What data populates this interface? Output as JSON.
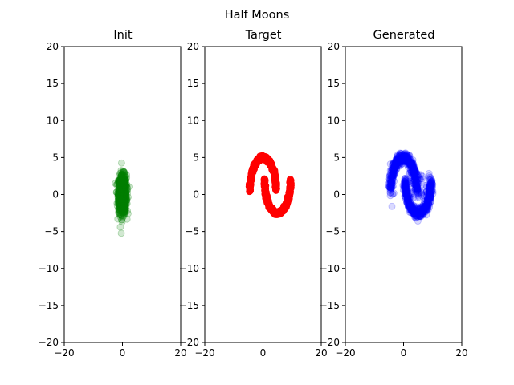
{
  "figure": {
    "suptitle": "Half Moons"
  },
  "chart_data": [
    {
      "type": "scatter",
      "title": "Init",
      "xlim": [
        -20,
        20
      ],
      "ylim": [
        -20,
        20
      ],
      "xticks": [
        -20,
        0,
        20
      ],
      "yticks": [
        -20,
        -15,
        -10,
        -5,
        0,
        5,
        10,
        15,
        20
      ],
      "xtick_labels": [
        "−20",
        "0",
        "20"
      ],
      "ytick_labels": [
        "−20",
        "−15",
        "−10",
        "−5",
        "0",
        "5",
        "10",
        "15",
        "20"
      ],
      "grid": false,
      "series": [
        {
          "color": "#008000",
          "alpha": 0.18,
          "distribution": "gaussian",
          "center": [
            0,
            0
          ],
          "std": [
            0.7,
            1.3
          ],
          "x_range": [
            -1.8,
            1.8
          ],
          "y_range": [
            -4,
            4
          ]
        }
      ]
    },
    {
      "type": "scatter",
      "title": "Target",
      "xlim": [
        -20,
        20
      ],
      "ylim": [
        -20,
        20
      ],
      "xticks": [
        -20,
        0,
        20
      ],
      "yticks": [
        -20,
        -15,
        -10,
        -5,
        0,
        5,
        10,
        15,
        20
      ],
      "xtick_labels": [
        "−20",
        "0",
        "20"
      ],
      "ytick_labels": [
        "−20",
        "−15",
        "−10",
        "−5",
        "0",
        "5",
        "10",
        "15",
        "20"
      ],
      "grid": false,
      "series": [
        {
          "color": "#ff0000",
          "alpha": 0.9,
          "distribution": "two half moons",
          "moons": [
            {
              "center": [
                0,
                0.5
              ],
              "radius": 4.5,
              "arc": "upper"
            },
            {
              "center": [
                5,
                2.0
              ],
              "radius": 4.5,
              "arc": "lower"
            }
          ],
          "x_range": [
            -5,
            10
          ],
          "y_range": [
            -2.5,
            5.3
          ]
        }
      ]
    },
    {
      "type": "scatter",
      "title": "Generated",
      "xlim": [
        -20,
        20
      ],
      "ylim": [
        -20,
        20
      ],
      "xticks": [
        -20,
        0,
        20
      ],
      "yticks": [
        -20,
        -15,
        -10,
        -5,
        0,
        5,
        10,
        15,
        20
      ],
      "xtick_labels": [
        "−20",
        "0",
        "20"
      ],
      "ytick_labels": [
        "−20",
        "−15",
        "−10",
        "−5",
        "0",
        "5",
        "10",
        "15",
        "20"
      ],
      "grid": false,
      "series": [
        {
          "color": "#0000ff",
          "alpha": 0.15,
          "distribution": "two half moons (noisy)",
          "moons": [
            {
              "center": [
                0,
                0.5
              ],
              "radius": 4.5,
              "arc": "upper"
            },
            {
              "center": [
                5,
                2.0
              ],
              "radius": 4.5,
              "arc": "lower"
            }
          ],
          "outliers": [
            [
              -4.5,
              0.3
            ],
            [
              -4.0,
              -1.6
            ],
            [
              3.0,
              3.7
            ],
            [
              2.5,
              3.2
            ]
          ],
          "x_range": [
            -5,
            10
          ],
          "y_range": [
            -2.8,
            5.3
          ]
        }
      ]
    }
  ]
}
